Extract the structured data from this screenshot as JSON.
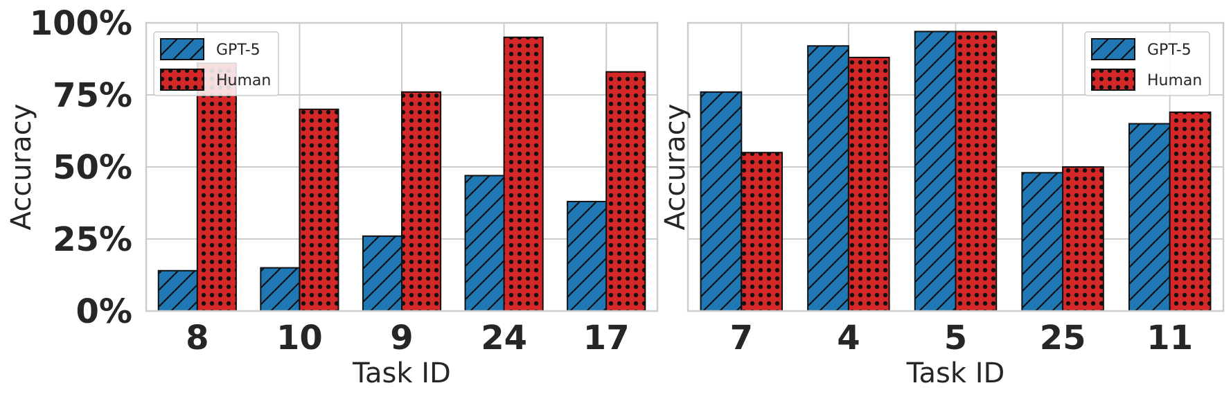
{
  "chart_data": [
    {
      "type": "bar",
      "categories": [
        "8",
        "10",
        "9",
        "24",
        "17"
      ],
      "series": [
        {
          "name": "GPT-5",
          "values": [
            14,
            15,
            26,
            47,
            38
          ]
        },
        {
          "name": "Human",
          "values": [
            86,
            70,
            76,
            95,
            83
          ]
        }
      ],
      "xlabel": "Task ID",
      "ylabel": "Accuracy",
      "ylim": [
        0,
        100
      ],
      "yticks": [
        "0%",
        "25%",
        "50%",
        "75%",
        "100%"
      ],
      "show_ytick_labels": true,
      "legend_position": "top-left",
      "grid": true
    },
    {
      "type": "bar",
      "categories": [
        "7",
        "4",
        "5",
        "25",
        "11"
      ],
      "series": [
        {
          "name": "GPT-5",
          "values": [
            76,
            92,
            97,
            48,
            65
          ]
        },
        {
          "name": "Human",
          "values": [
            55,
            88,
            97,
            50,
            69
          ]
        }
      ],
      "xlabel": "Task ID",
      "ylabel": "Accuracy",
      "ylim": [
        0,
        100
      ],
      "yticks": [
        "0%",
        "25%",
        "50%",
        "75%",
        "100%"
      ],
      "show_ytick_labels": false,
      "legend_position": "top-right",
      "grid": true
    }
  ],
  "colors": {
    "gpt5": "#1f77b4",
    "human": "#d62728",
    "grid": "#cccccc",
    "frame": "#cccccc",
    "text": "#262626"
  }
}
